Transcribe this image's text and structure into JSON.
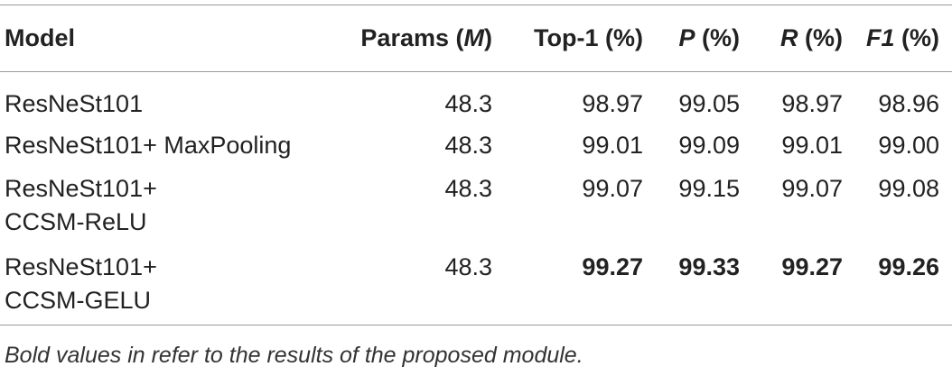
{
  "table": {
    "headers": {
      "model": "Model",
      "params_prefix": "Params (",
      "params_unit": "M",
      "params_suffix": ")",
      "top1": "Top-1 (%)",
      "p_sym": "P",
      "p_suffix": " (%)",
      "r_sym": "R",
      "r_suffix": " (%)",
      "f1_sym": "F1",
      "f1_suffix": " (%)"
    },
    "rows": [
      {
        "model_line1": "ResNeSt101",
        "model_line2": "",
        "params": "48.3",
        "top1": "98.97",
        "p": "99.05",
        "r": "98.97",
        "f1": "98.96",
        "bold": false
      },
      {
        "model_line1": "ResNeSt101+ MaxPooling",
        "model_line2": "",
        "params": "48.3",
        "top1": "99.01",
        "p": "99.09",
        "r": "99.01",
        "f1": "99.00",
        "bold": false
      },
      {
        "model_line1": "ResNeSt101+",
        "model_line2": "CCSM-ReLU",
        "params": "48.3",
        "top1": "99.07",
        "p": "99.15",
        "r": "99.07",
        "f1": "99.08",
        "bold": false
      },
      {
        "model_line1": "ResNeSt101+",
        "model_line2": "CCSM-GELU",
        "params": "48.3",
        "top1": "99.27",
        "p": "99.33",
        "r": "99.27",
        "f1": "99.26",
        "bold": true
      }
    ],
    "footnote": "Bold values in refer to the results of the proposed module."
  }
}
